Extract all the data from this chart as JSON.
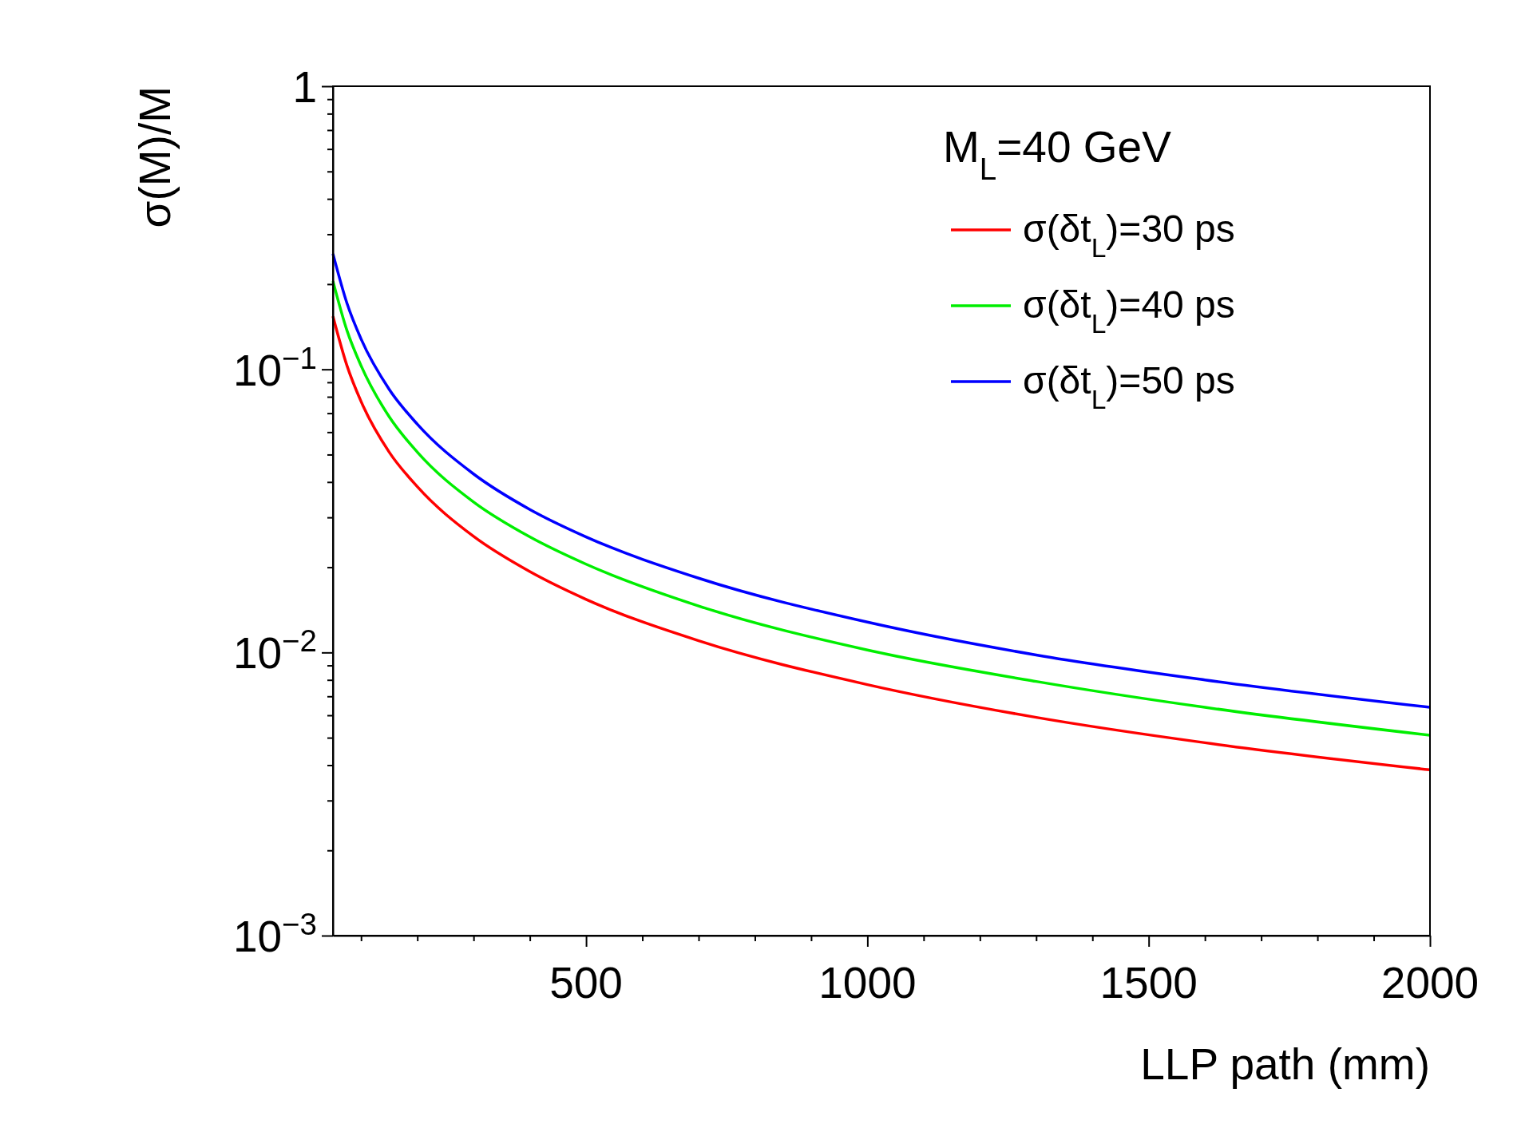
{
  "chart_data": {
    "type": "line",
    "xlabel": "LLP path (mm)",
    "ylabel": "σ(M)/M",
    "legend_title": "M$_{L}$=40 GeV",
    "log": "y",
    "grid": false,
    "legend": "top right",
    "line_style": "solid",
    "marker": "none",
    "x": [
      50,
      75,
      100,
      150,
      200,
      300,
      400,
      500,
      700,
      1000,
      1300,
      1600,
      2000
    ],
    "series": [
      {
        "name": "σ(δt$_{L}$)=30 ps",
        "color": "#ff0000",
        "values": [
          0.154,
          0.103,
          0.077,
          0.051,
          0.0385,
          0.0257,
          0.0193,
          0.0154,
          0.011,
          0.0077,
          0.0059,
          0.0048,
          0.00385
        ]
      },
      {
        "name": "σ(δt$_{L}$)=40 ps",
        "color": "#00ee00",
        "values": [
          0.205,
          0.137,
          0.103,
          0.068,
          0.051,
          0.034,
          0.0256,
          0.0205,
          0.0146,
          0.0102,
          0.0079,
          0.0064,
          0.0051
        ]
      },
      {
        "name": "σ(δt$_{L}$)=50 ps",
        "color": "#0000ff",
        "values": [
          0.256,
          0.171,
          0.128,
          0.085,
          0.064,
          0.0427,
          0.032,
          0.0256,
          0.0183,
          0.0128,
          0.0098,
          0.008,
          0.0064
        ]
      }
    ],
    "xlim": [
      50,
      2000
    ],
    "xticks": [
      {
        "value": 100,
        "label": null
      },
      {
        "value": 200,
        "label": null
      },
      {
        "value": 300,
        "label": null
      },
      {
        "value": 400,
        "label": null
      },
      500,
      {
        "value": 600,
        "label": null
      },
      {
        "value": 700,
        "label": null
      },
      {
        "value": 800,
        "label": null
      },
      {
        "value": 900,
        "label": null
      },
      1000,
      {
        "value": 1100,
        "label": null
      },
      {
        "value": 1200,
        "label": null
      },
      {
        "value": 1300,
        "label": null
      },
      {
        "value": 1400,
        "label": null
      },
      1500,
      {
        "value": 1600,
        "label": null
      },
      {
        "value": 1700,
        "label": null
      },
      {
        "value": 1800,
        "label": null
      },
      {
        "value": 1900,
        "label": null
      },
      2000
    ],
    "ylim": [
      0.001,
      1
    ],
    "yticks": [
      {
        "value": 0.001,
        "label": "10$^{−3}$"
      },
      {
        "value": 0.002,
        "label": null
      },
      {
        "value": 0.003,
        "label": null
      },
      {
        "value": 0.004,
        "label": null
      },
      {
        "value": 0.005,
        "label": null
      },
      {
        "value": 0.006,
        "label": null
      },
      {
        "value": 0.007,
        "label": null
      },
      {
        "value": 0.008,
        "label": null
      },
      {
        "value": 0.009,
        "label": null
      },
      {
        "value": 0.01,
        "label": "10$^{−2}$"
      },
      {
        "value": 0.02,
        "label": null
      },
      {
        "value": 0.03,
        "label": null
      },
      {
        "value": 0.04,
        "label": null
      },
      {
        "value": 0.05,
        "label": null
      },
      {
        "value": 0.06,
        "label": null
      },
      {
        "value": 0.07,
        "label": null
      },
      {
        "value": 0.08,
        "label": null
      },
      {
        "value": 0.09,
        "label": null
      },
      {
        "value": 0.1,
        "label": "10$^{−1}$"
      },
      {
        "value": 0.2,
        "label": null
      },
      {
        "value": 0.3,
        "label": null
      },
      {
        "value": 0.4,
        "label": null
      },
      {
        "value": 0.5,
        "label": null
      },
      {
        "value": 0.6,
        "label": null
      },
      {
        "value": 0.7,
        "label": null
      },
      {
        "value": 0.8,
        "label": null
      },
      {
        "value": 0.9,
        "label": null
      },
      1
    ]
  }
}
